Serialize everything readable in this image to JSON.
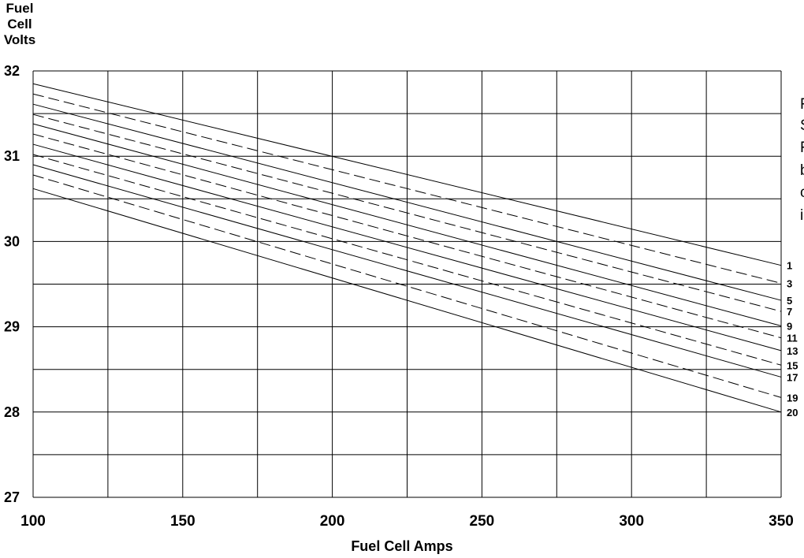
{
  "chart_data": {
    "type": "line",
    "xlabel": "Fuel Cell Amps",
    "ylabel": [
      "Fuel",
      "Cell",
      "Volts"
    ],
    "xlim": [
      100,
      350
    ],
    "ylim": [
      27,
      32
    ],
    "x_ticks": [
      100,
      150,
      200,
      250,
      300,
      350
    ],
    "y_ticks": [
      27,
      28,
      29,
      30,
      31,
      32
    ],
    "x_grid": [
      100,
      125,
      150,
      175,
      200,
      225,
      250,
      275,
      300,
      325,
      350
    ],
    "y_grid": [
      27,
      27.5,
      28,
      28.5,
      29,
      29.5,
      30,
      30.5,
      31,
      31.5,
      32
    ],
    "grid": true,
    "series": [
      {
        "name": "1",
        "style": "solid",
        "x": [
          100,
          350
        ],
        "y": [
          31.85,
          29.72
        ]
      },
      {
        "name": "3",
        "style": "dashed",
        "x": [
          100,
          350
        ],
        "y": [
          31.73,
          29.51
        ]
      },
      {
        "name": "5",
        "style": "solid",
        "x": [
          100,
          350
        ],
        "y": [
          31.61,
          29.31
        ]
      },
      {
        "name": "7",
        "style": "dashed",
        "x": [
          100,
          350
        ],
        "y": [
          31.49,
          29.18
        ]
      },
      {
        "name": "9",
        "style": "solid",
        "x": [
          100,
          350
        ],
        "y": [
          31.38,
          29.01
        ]
      },
      {
        "name": "11",
        "style": "dashed",
        "x": [
          100,
          350
        ],
        "y": [
          31.26,
          28.87
        ]
      },
      {
        "name": "13",
        "style": "solid",
        "x": [
          100,
          350
        ],
        "y": [
          31.14,
          28.72
        ]
      },
      {
        "name": "15",
        "style": "dashed",
        "x": [
          100,
          350
        ],
        "y": [
          31.02,
          28.55
        ]
      },
      {
        "name": "17",
        "style": "solid",
        "x": [
          100,
          350
        ],
        "y": [
          30.9,
          28.41
        ]
      },
      {
        "name": "19",
        "style": "dashed",
        "x": [
          100,
          350
        ],
        "y": [
          30.78,
          28.17
        ]
      },
      {
        "name": "20",
        "style": "solid",
        "x": [
          100,
          350
        ],
        "y": [
          30.62,
          28.0
        ]
      }
    ]
  },
  "note_lines": [
    "F",
    "S",
    "F",
    "b",
    "c",
    "i"
  ]
}
